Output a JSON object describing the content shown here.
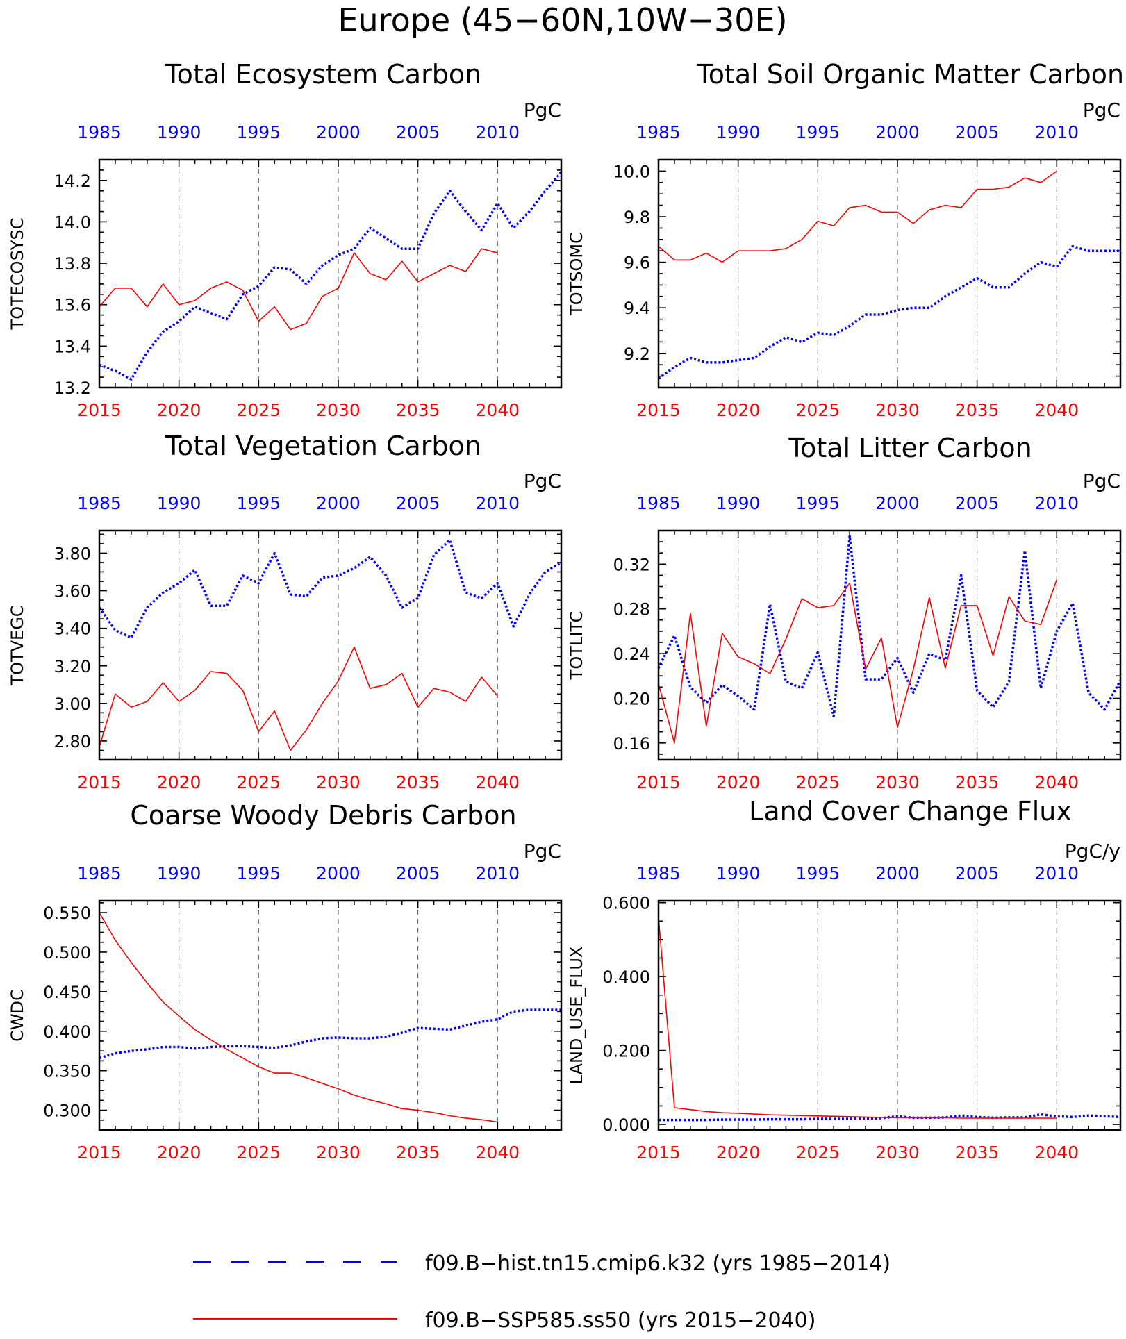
{
  "figure": {
    "title": "Europe (45−60N,10W−30E)",
    "colors": {
      "hist": "#0000ff",
      "ssp": "#ff0000",
      "axis": "#000000",
      "grid": "#555555"
    },
    "legend": {
      "placement": "bottom-center",
      "entries": [
        {
          "name": "f09.B−hist.tn15.cmip6.k32 (yrs 1985−2014)",
          "color": "#0000ff",
          "style": "dashed"
        },
        {
          "name": "f09.B−SSP585.ss50 (yrs 2015−2040)",
          "color": "#ff0000",
          "style": "solid"
        }
      ]
    }
  },
  "chart_data": [
    {
      "type": "line",
      "title": "Total Ecosystem Carbon",
      "ylabel": "TOTECOSYSC",
      "units": "PgC",
      "ylim": [
        13.2,
        14.3
      ],
      "yticks": [
        13.2,
        13.4,
        13.6,
        13.8,
        14.0,
        14.2
      ],
      "ytick_labels": [
        "13.2",
        "13.4",
        "13.6",
        "13.8",
        "14.0",
        "14.2"
      ],
      "grid": "vertical dashed at labeled years",
      "x_bottom": {
        "label_years": [
          2015,
          2020,
          2025,
          2030,
          2035,
          2040
        ],
        "range": [
          2015,
          2044
        ]
      },
      "x_top": {
        "label_years": [
          1985,
          1990,
          1995,
          2000,
          2005,
          2010
        ],
        "range": [
          1985,
          2014
        ]
      },
      "series": [
        {
          "key": "hist",
          "x": [
            1985,
            1986,
            1987,
            1988,
            1989,
            1990,
            1991,
            1992,
            1993,
            1994,
            1995,
            1996,
            1997,
            1998,
            1999,
            2000,
            2001,
            2002,
            2003,
            2004,
            2005,
            2006,
            2007,
            2008,
            2009,
            2010,
            2011,
            2012,
            2013,
            2014
          ],
          "values": [
            13.31,
            13.28,
            13.24,
            13.37,
            13.47,
            13.52,
            13.59,
            13.56,
            13.53,
            13.65,
            13.69,
            13.78,
            13.77,
            13.7,
            13.79,
            13.84,
            13.87,
            13.97,
            13.92,
            13.87,
            13.87,
            14.04,
            14.15,
            14.05,
            13.96,
            14.09,
            13.97,
            14.05,
            14.15,
            14.24
          ]
        },
        {
          "key": "ssp",
          "x": [
            2015,
            2016,
            2017,
            2018,
            2019,
            2020,
            2021,
            2022,
            2023,
            2024,
            2025,
            2026,
            2027,
            2028,
            2029,
            2030,
            2031,
            2032,
            2033,
            2034,
            2035,
            2036,
            2037,
            2038,
            2039,
            2040
          ],
          "values": [
            13.59,
            13.68,
            13.68,
            13.59,
            13.7,
            13.6,
            13.62,
            13.68,
            13.71,
            13.67,
            13.52,
            13.59,
            13.48,
            13.51,
            13.64,
            13.68,
            13.85,
            13.75,
            13.72,
            13.81,
            13.71,
            13.75,
            13.79,
            13.76,
            13.87,
            13.85
          ]
        }
      ]
    },
    {
      "type": "line",
      "title": "Total Soil Organic Matter Carbon",
      "ylabel": "TOTSOMC",
      "units": "PgC",
      "ylim": [
        9.05,
        10.05
      ],
      "yticks": [
        9.2,
        9.4,
        9.6,
        9.8,
        10.0
      ],
      "ytick_labels": [
        "9.2",
        "9.4",
        "9.6",
        "9.8",
        "10.0"
      ],
      "grid": "vertical dashed at labeled years",
      "x_bottom": {
        "label_years": [
          2015,
          2020,
          2025,
          2030,
          2035,
          2040
        ],
        "range": [
          2015,
          2044
        ]
      },
      "x_top": {
        "label_years": [
          1985,
          1990,
          1995,
          2000,
          2005,
          2010
        ],
        "range": [
          1985,
          2014
        ]
      },
      "series": [
        {
          "key": "hist",
          "x": [
            1985,
            1986,
            1987,
            1988,
            1989,
            1990,
            1991,
            1992,
            1993,
            1994,
            1995,
            1996,
            1997,
            1998,
            1999,
            2000,
            2001,
            2002,
            2003,
            2004,
            2005,
            2006,
            2007,
            2008,
            2009,
            2010,
            2011,
            2012,
            2013,
            2014
          ],
          "values": [
            9.09,
            9.14,
            9.18,
            9.16,
            9.16,
            9.17,
            9.18,
            9.23,
            9.27,
            9.25,
            9.29,
            9.28,
            9.32,
            9.37,
            9.37,
            9.39,
            9.4,
            9.4,
            9.45,
            9.49,
            9.53,
            9.49,
            9.49,
            9.55,
            9.6,
            9.58,
            9.67,
            9.65,
            9.65,
            9.65
          ]
        },
        {
          "key": "ssp",
          "x": [
            2015,
            2016,
            2017,
            2018,
            2019,
            2020,
            2021,
            2022,
            2023,
            2024,
            2025,
            2026,
            2027,
            2028,
            2029,
            2030,
            2031,
            2032,
            2033,
            2034,
            2035,
            2036,
            2037,
            2038,
            2039,
            2040
          ],
          "values": [
            9.67,
            9.61,
            9.61,
            9.64,
            9.6,
            9.65,
            9.65,
            9.65,
            9.66,
            9.7,
            9.78,
            9.76,
            9.84,
            9.85,
            9.82,
            9.82,
            9.77,
            9.83,
            9.85,
            9.84,
            9.92,
            9.92,
            9.93,
            9.97,
            9.95,
            10.0
          ]
        }
      ]
    },
    {
      "type": "line",
      "title": "Total Vegetation Carbon",
      "ylabel": "TOTVEGC",
      "units": "PgC",
      "ylim": [
        2.7,
        3.92
      ],
      "yticks": [
        2.8,
        3.0,
        3.2,
        3.4,
        3.6,
        3.8
      ],
      "ytick_labels": [
        "2.80",
        "3.00",
        "3.20",
        "3.40",
        "3.60",
        "3.80"
      ],
      "grid": "vertical dashed at labeled years",
      "x_bottom": {
        "label_years": [
          2015,
          2020,
          2025,
          2030,
          2035,
          2040
        ],
        "range": [
          2015,
          2044
        ]
      },
      "x_top": {
        "label_years": [
          1985,
          1990,
          1995,
          2000,
          2005,
          2010
        ],
        "range": [
          1985,
          2014
        ]
      },
      "series": [
        {
          "key": "hist",
          "x": [
            1985,
            1986,
            1987,
            1988,
            1989,
            1990,
            1991,
            1992,
            1993,
            1994,
            1995,
            1996,
            1997,
            1998,
            1999,
            2000,
            2001,
            2002,
            2003,
            2004,
            2005,
            2006,
            2007,
            2008,
            2009,
            2010,
            2011,
            2012,
            2013,
            2014
          ],
          "values": [
            3.51,
            3.39,
            3.35,
            3.51,
            3.59,
            3.64,
            3.71,
            3.52,
            3.52,
            3.68,
            3.64,
            3.8,
            3.58,
            3.57,
            3.67,
            3.68,
            3.72,
            3.78,
            3.68,
            3.51,
            3.56,
            3.79,
            3.87,
            3.59,
            3.56,
            3.64,
            3.41,
            3.58,
            3.7,
            3.75
          ]
        },
        {
          "key": "ssp",
          "x": [
            2015,
            2016,
            2017,
            2018,
            2019,
            2020,
            2021,
            2022,
            2023,
            2024,
            2025,
            2026,
            2027,
            2028,
            2029,
            2030,
            2031,
            2032,
            2033,
            2034,
            2035,
            2036,
            2037,
            2038,
            2039,
            2040
          ],
          "values": [
            2.77,
            3.05,
            2.98,
            3.01,
            3.11,
            3.01,
            3.07,
            3.17,
            3.16,
            3.07,
            2.85,
            2.96,
            2.75,
            2.86,
            3.0,
            3.12,
            3.3,
            3.08,
            3.1,
            3.16,
            2.98,
            3.08,
            3.06,
            3.01,
            3.14,
            3.04
          ]
        }
      ]
    },
    {
      "type": "line",
      "title": "Total Litter Carbon",
      "ylabel": "TOTLITC",
      "units": "PgC",
      "ylim": [
        0.145,
        0.35
      ],
      "yticks": [
        0.16,
        0.2,
        0.24,
        0.28,
        0.32
      ],
      "ytick_labels": [
        "0.16",
        "0.20",
        "0.24",
        "0.28",
        "0.32"
      ],
      "grid": "vertical dashed at labeled years",
      "x_bottom": {
        "label_years": [
          2015,
          2020,
          2025,
          2030,
          2035,
          2040
        ],
        "range": [
          2015,
          2044
        ]
      },
      "x_top": {
        "label_years": [
          1985,
          1990,
          1995,
          2000,
          2005,
          2010
        ],
        "range": [
          1985,
          2014
        ]
      },
      "series": [
        {
          "key": "hist",
          "x": [
            1985,
            1986,
            1987,
            1988,
            1989,
            1990,
            1991,
            1992,
            1993,
            1994,
            1995,
            1996,
            1997,
            1998,
            1999,
            2000,
            2001,
            2002,
            2003,
            2004,
            2005,
            2006,
            2007,
            2008,
            2009,
            2010,
            2011,
            2012,
            2013,
            2014
          ],
          "values": [
            0.227,
            0.256,
            0.21,
            0.196,
            0.212,
            0.202,
            0.19,
            0.284,
            0.215,
            0.209,
            0.241,
            0.184,
            0.345,
            0.217,
            0.217,
            0.236,
            0.205,
            0.24,
            0.234,
            0.31,
            0.207,
            0.192,
            0.215,
            0.332,
            0.209,
            0.26,
            0.285,
            0.205,
            0.19,
            0.216
          ]
        },
        {
          "key": "ssp",
          "x": [
            2015,
            2016,
            2017,
            2018,
            2019,
            2020,
            2021,
            2022,
            2023,
            2024,
            2025,
            2026,
            2027,
            2028,
            2029,
            2030,
            2031,
            2032,
            2033,
            2034,
            2035,
            2036,
            2037,
            2038,
            2039,
            2040
          ],
          "values": [
            0.213,
            0.16,
            0.276,
            0.175,
            0.258,
            0.237,
            0.231,
            0.222,
            0.253,
            0.289,
            0.281,
            0.283,
            0.303,
            0.226,
            0.254,
            0.174,
            0.226,
            0.29,
            0.227,
            0.283,
            0.283,
            0.238,
            0.291,
            0.269,
            0.266,
            0.306
          ]
        }
      ]
    },
    {
      "type": "line",
      "title": "Coarse Woody Debris Carbon",
      "ylabel": "CWDC",
      "units": "PgC",
      "ylim": [
        0.275,
        0.565
      ],
      "yticks": [
        0.3,
        0.35,
        0.4,
        0.45,
        0.5,
        0.55
      ],
      "ytick_labels": [
        "0.300",
        "0.350",
        "0.400",
        "0.450",
        "0.500",
        "0.550"
      ],
      "grid": "vertical dashed at labeled years",
      "x_bottom": {
        "label_years": [
          2015,
          2020,
          2025,
          2030,
          2035,
          2040
        ],
        "range": [
          2015,
          2044
        ]
      },
      "x_top": {
        "label_years": [
          1985,
          1990,
          1995,
          2000,
          2005,
          2010
        ],
        "range": [
          1985,
          2014
        ]
      },
      "series": [
        {
          "key": "hist",
          "x": [
            1985,
            1986,
            1987,
            1988,
            1989,
            1990,
            1991,
            1992,
            1993,
            1994,
            1995,
            1996,
            1997,
            1998,
            1999,
            2000,
            2001,
            2002,
            2003,
            2004,
            2005,
            2006,
            2007,
            2008,
            2009,
            2010,
            2011,
            2012,
            2013,
            2014
          ],
          "values": [
            0.366,
            0.372,
            0.375,
            0.377,
            0.38,
            0.38,
            0.378,
            0.38,
            0.381,
            0.381,
            0.38,
            0.379,
            0.382,
            0.387,
            0.391,
            0.392,
            0.391,
            0.391,
            0.393,
            0.398,
            0.404,
            0.403,
            0.402,
            0.407,
            0.412,
            0.415,
            0.425,
            0.427,
            0.427,
            0.427
          ]
        },
        {
          "key": "ssp",
          "x": [
            2015,
            2016,
            2017,
            2018,
            2019,
            2020,
            2021,
            2022,
            2023,
            2024,
            2025,
            2026,
            2027,
            2028,
            2029,
            2030,
            2031,
            2032,
            2033,
            2034,
            2035,
            2036,
            2037,
            2038,
            2039,
            2040
          ],
          "values": [
            0.55,
            0.515,
            0.487,
            0.461,
            0.437,
            0.419,
            0.402,
            0.389,
            0.377,
            0.366,
            0.355,
            0.347,
            0.347,
            0.341,
            0.334,
            0.327,
            0.319,
            0.313,
            0.308,
            0.302,
            0.3,
            0.297,
            0.293,
            0.29,
            0.288,
            0.285
          ]
        }
      ]
    },
    {
      "type": "line",
      "title": "Land Cover Change Flux",
      "ylabel": "LAND_USE_FLUX",
      "units": "PgC/y",
      "ylim": [
        -0.015,
        0.605
      ],
      "yticks": [
        0.0,
        0.2,
        0.4,
        0.6
      ],
      "ytick_labels": [
        "0.000",
        "0.200",
        "0.400",
        "0.600"
      ],
      "grid": "vertical dashed at labeled years",
      "x_bottom": {
        "label_years": [
          2015,
          2020,
          2025,
          2030,
          2035,
          2040
        ],
        "range": [
          2015,
          2044
        ]
      },
      "x_top": {
        "label_years": [
          1985,
          1990,
          1995,
          2000,
          2005,
          2010
        ],
        "range": [
          1985,
          2014
        ]
      },
      "series": [
        {
          "key": "hist",
          "x": [
            1985,
            1986,
            1987,
            1988,
            1989,
            1990,
            1991,
            1992,
            1993,
            1994,
            1995,
            1996,
            1997,
            1998,
            1999,
            2000,
            2001,
            2002,
            2003,
            2004,
            2005,
            2006,
            2007,
            2008,
            2009,
            2010,
            2011,
            2012,
            2013,
            2014
          ],
          "values": [
            0.012,
            0.012,
            0.012,
            0.012,
            0.013,
            0.013,
            0.013,
            0.014,
            0.014,
            0.014,
            0.015,
            0.015,
            0.015,
            0.016,
            0.017,
            0.022,
            0.018,
            0.018,
            0.019,
            0.024,
            0.02,
            0.018,
            0.019,
            0.019,
            0.027,
            0.022,
            0.02,
            0.024,
            0.022,
            0.02
          ]
        },
        {
          "key": "ssp",
          "x": [
            2015,
            2016,
            2017,
            2018,
            2019,
            2020,
            2021,
            2022,
            2023,
            2024,
            2025,
            2026,
            2027,
            2028,
            2029,
            2030,
            2031,
            2032,
            2033,
            2034,
            2035,
            2036,
            2037,
            2038,
            2039,
            2040
          ],
          "values": [
            0.56,
            0.045,
            0.04,
            0.035,
            0.032,
            0.03,
            0.028,
            0.026,
            0.025,
            0.024,
            0.023,
            0.022,
            0.021,
            0.02,
            0.019,
            0.018,
            0.018,
            0.018,
            0.018,
            0.017,
            0.017,
            0.017,
            0.017,
            0.017,
            0.017,
            0.017
          ]
        }
      ]
    }
  ]
}
